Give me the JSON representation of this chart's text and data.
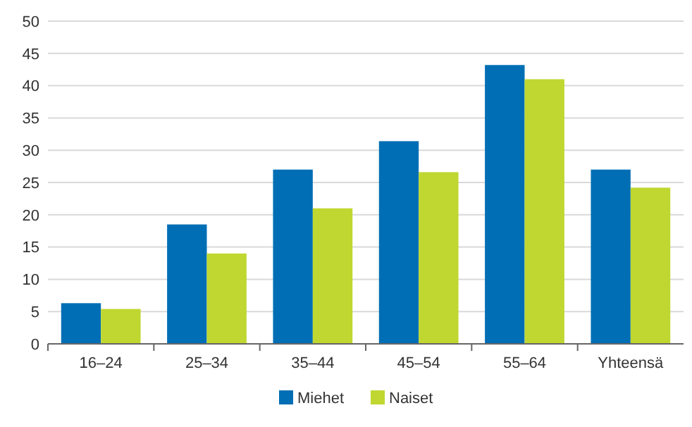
{
  "chart_data": {
    "type": "bar",
    "categories": [
      "16–24",
      "25–34",
      "35–44",
      "45–54",
      "55–64",
      "Yhteensä"
    ],
    "series": [
      {
        "name": "Miehet",
        "color": "#006eb5",
        "values": [
          6.3,
          18.5,
          27,
          31.4,
          43.2,
          27
        ]
      },
      {
        "name": "Naiset",
        "color": "#bfd730",
        "values": [
          5.4,
          14,
          21,
          26.6,
          41,
          24.2
        ]
      }
    ],
    "ylim": [
      0,
      50
    ],
    "yticks": [
      0,
      5,
      10,
      15,
      20,
      25,
      30,
      35,
      40,
      45,
      50
    ],
    "grid": "y",
    "legend": "bottom"
  }
}
